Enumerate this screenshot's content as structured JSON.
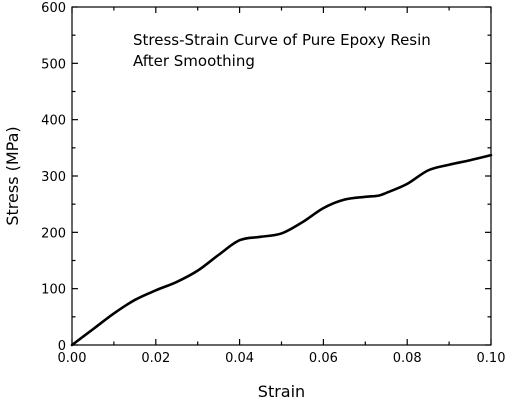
{
  "chart_data": {
    "type": "line",
    "title": "",
    "xlabel": "Strain",
    "ylabel": "Stress (MPa)",
    "xlim": [
      0.0,
      0.1
    ],
    "ylim": [
      0,
      600
    ],
    "grid": false,
    "legend": "none",
    "x_ticks": [
      "0.00",
      "0.02",
      "0.04",
      "0.06",
      "0.08",
      "0.10"
    ],
    "x_tick_values": [
      0.0,
      0.02,
      0.04,
      0.06,
      0.08,
      0.1
    ],
    "y_ticks": [
      "0",
      "100",
      "200",
      "300",
      "400",
      "500",
      "600"
    ],
    "y_tick_values": [
      0,
      100,
      200,
      300,
      400,
      500,
      600
    ],
    "annotation_lines": [
      "Stress-Strain Curve of Pure Epoxy Resin",
      "After Smoothing"
    ],
    "line_color": "#000000",
    "series": [
      {
        "x": [
          0.0,
          0.005,
          0.01,
          0.015,
          0.02,
          0.025,
          0.03,
          0.035,
          0.04,
          0.045,
          0.05,
          0.055,
          0.06,
          0.065,
          0.07,
          0.073,
          0.075,
          0.08,
          0.085,
          0.09,
          0.095,
          0.1
        ],
        "y": [
          0,
          28,
          56,
          80,
          97,
          112,
          132,
          160,
          186,
          192,
          198,
          218,
          243,
          258,
          263,
          265,
          270,
          286,
          310,
          320,
          328,
          337
        ]
      }
    ]
  }
}
